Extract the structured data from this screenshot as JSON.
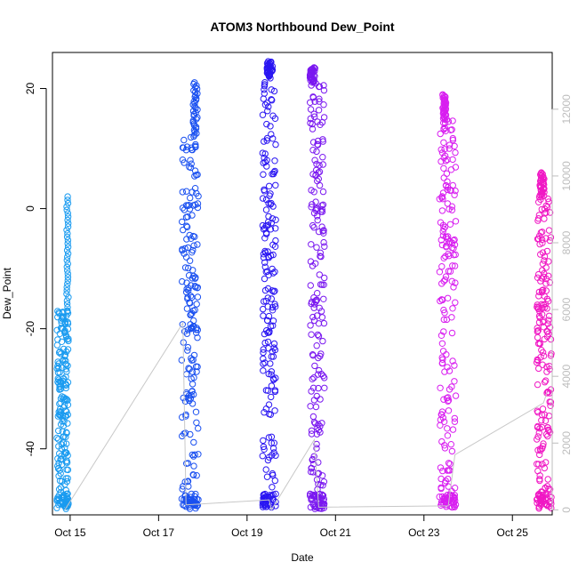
{
  "chart_data": {
    "type": "scatter",
    "title": "ATOM3 Northbound Dew_Point",
    "xlabel": "Date",
    "ylabel": "Dew_Point",
    "x_tick_labels": [
      "Oct 15",
      "Oct 17",
      "Oct 19",
      "Oct 21",
      "Oct 23",
      "Oct 25"
    ],
    "x_tick_days": [
      15,
      17,
      19,
      21,
      23,
      25
    ],
    "xlim_days": [
      14.6,
      25.9
    ],
    "y_ticks": [
      -40,
      -20,
      0,
      20
    ],
    "ylim": [
      -51,
      26
    ],
    "y2_ticks": [
      0,
      2000,
      4000,
      6000,
      8000,
      10000,
      12000
    ],
    "y2lim": [
      -150,
      13700
    ],
    "grid": false,
    "secondary_line_color": "#c8c8c8",
    "secondary_line": {
      "x_days": [
        14.88,
        17.55,
        17.62,
        19.5,
        19.55,
        20.52,
        20.62,
        23.55,
        23.7,
        25.7,
        25.78
      ],
      "values": [
        0,
        5600,
        150,
        300,
        0,
        2100,
        80,
        120,
        1650,
        3200,
        3500
      ]
    },
    "series": [
      {
        "color": "#1a9bf0",
        "x_range_days": [
          14.7,
          14.96
        ],
        "y_bottom": -50,
        "y_top": -17,
        "spike_x_days": [
          14.92,
          14.96
        ],
        "spike_top": 2
      },
      {
        "color": "#1a50f0",
        "x_range_days": [
          17.52,
          17.9
        ],
        "y_bottom": -50,
        "y_top": 12,
        "spike_x_days": [
          17.78,
          17.88
        ],
        "spike_top": 21
      },
      {
        "color": "#2a16f2",
        "x_range_days": [
          19.35,
          19.65
        ],
        "y_bottom": -50,
        "y_top": 22,
        "spike_x_days": [
          19.45,
          19.58
        ],
        "spike_top": 24.5
      },
      {
        "color": "#7a18f0",
        "x_range_days": [
          20.42,
          20.75
        ],
        "y_bottom": -50,
        "y_top": 21,
        "spike_x_days": [
          20.42,
          20.55
        ],
        "spike_top": 23.5
      },
      {
        "color": "#d81ef0",
        "x_range_days": [
          23.35,
          23.72
        ],
        "y_bottom": -50,
        "y_top": 15,
        "spike_x_days": [
          23.42,
          23.5
        ],
        "spike_top": 19
      },
      {
        "color": "#f018c4",
        "x_range_days": [
          25.55,
          25.88
        ],
        "y_bottom": -50,
        "y_top": 2,
        "spike_x_days": [
          25.62,
          25.72
        ],
        "spike_top": 6
      }
    ]
  }
}
